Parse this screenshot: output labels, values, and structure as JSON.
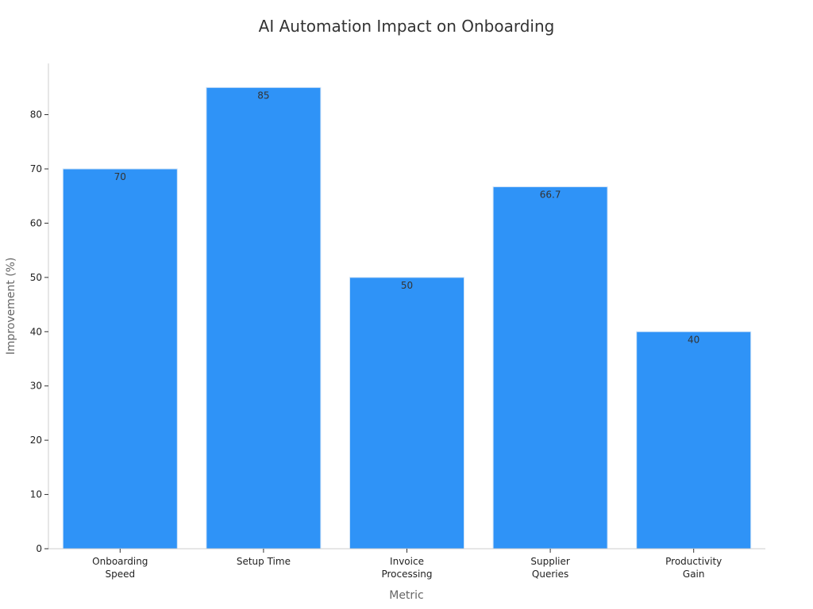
{
  "chart_data": {
    "type": "bar",
    "title": "AI Automation Impact on Onboarding",
    "xlabel": "Metric",
    "ylabel": "Improvement (%)",
    "categories": [
      [
        "Onboarding",
        "Speed"
      ],
      [
        "Setup Time"
      ],
      [
        "Invoice",
        "Processing"
      ],
      [
        "Supplier",
        "Queries"
      ],
      [
        "Productivity",
        "Gain"
      ]
    ],
    "values": [
      70,
      85,
      50,
      66.7,
      40
    ],
    "value_labels": [
      "70",
      "85",
      "50",
      "66.7",
      "40"
    ],
    "yticks": [
      0,
      10,
      20,
      30,
      40,
      50,
      60,
      70,
      80
    ],
    "ylim": [
      0,
      89
    ],
    "grid": false,
    "bar_color": "#2f93f7",
    "bar_edge_color": "#cfe3f7",
    "axis_color": "#cccccc"
  }
}
